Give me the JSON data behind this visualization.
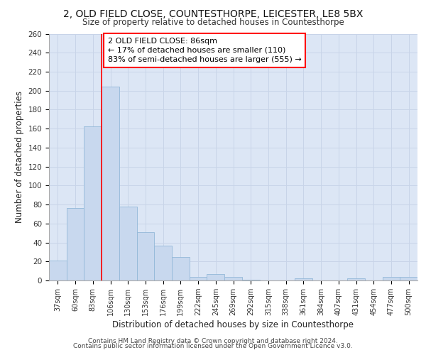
{
  "title1": "2, OLD FIELD CLOSE, COUNTESTHORPE, LEICESTER, LE8 5BX",
  "title2": "Size of property relative to detached houses in Countesthorpe",
  "xlabel": "Distribution of detached houses by size in Countesthorpe",
  "ylabel": "Number of detached properties",
  "footer1": "Contains HM Land Registry data © Crown copyright and database right 2024.",
  "footer2": "Contains public sector information licensed under the Open Government Licence v3.0.",
  "categories": [
    "37sqm",
    "60sqm",
    "83sqm",
    "106sqm",
    "130sqm",
    "153sqm",
    "176sqm",
    "199sqm",
    "222sqm",
    "245sqm",
    "269sqm",
    "292sqm",
    "315sqm",
    "338sqm",
    "361sqm",
    "384sqm",
    "407sqm",
    "431sqm",
    "454sqm",
    "477sqm",
    "500sqm"
  ],
  "values": [
    21,
    76,
    162,
    204,
    78,
    51,
    37,
    25,
    4,
    7,
    4,
    1,
    0,
    0,
    2,
    0,
    0,
    2,
    0,
    4,
    4
  ],
  "bar_color": "#c8d8ee",
  "bar_edge_color": "#93b8d8",
  "ylim_max": 260,
  "ytick_step": 20,
  "grid_color": "#c8d4e8",
  "bg_color": "#dce6f5",
  "fig_bg_color": "#ffffff",
  "annotation_text_line1": "2 OLD FIELD CLOSE: 86sqm",
  "annotation_text_line2": "← 17% of detached houses are smaller (110)",
  "annotation_text_line3": "83% of semi-detached houses are larger (555) →",
  "red_line_index": 2.5,
  "title1_fontsize": 10,
  "title2_fontsize": 8.5,
  "axis_label_fontsize": 8.5,
  "tick_fontsize": 7.5,
  "xtick_fontsize": 7,
  "footer_fontsize": 6.5,
  "annot_fontsize": 8
}
